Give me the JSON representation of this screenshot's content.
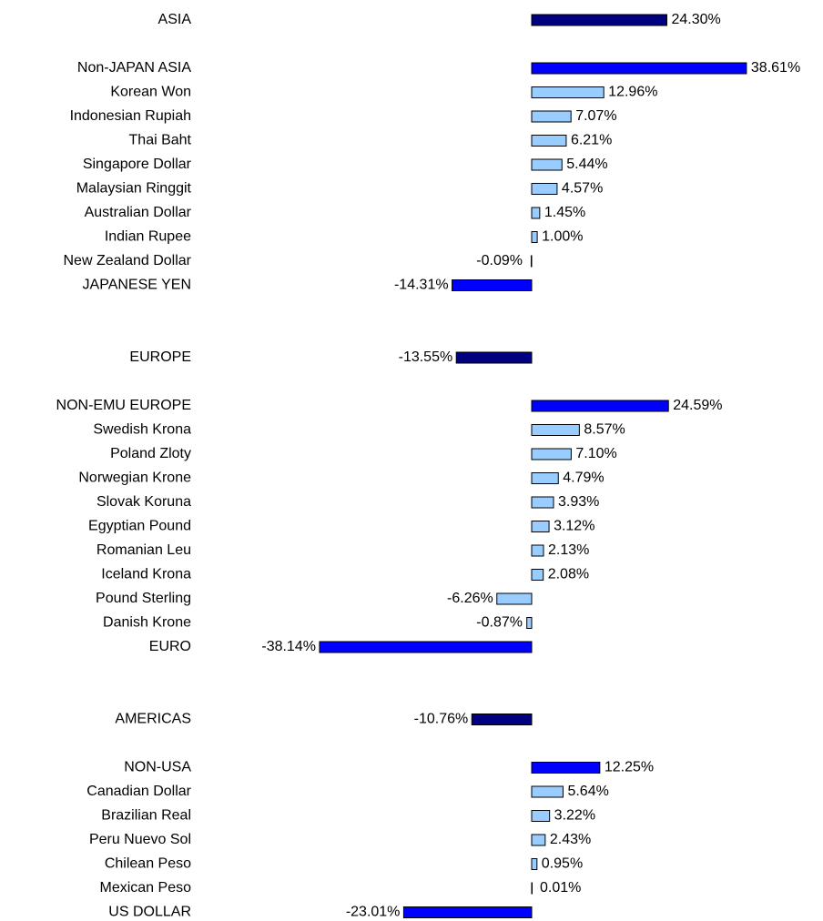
{
  "chart_data": {
    "type": "hbar",
    "categories": [
      "ASIA",
      null,
      "Non-JAPAN ASIA",
      "Korean Won",
      "Indonesian Rupiah",
      "Thai Baht",
      "Singapore Dollar",
      "Malaysian Ringgit",
      "Australian Dollar",
      "Indian Rupee",
      "New Zealand Dollar",
      "JAPANESE YEN",
      null,
      null,
      "EUROPE",
      null,
      "NON-EMU EUROPE",
      "Swedish Krona",
      "Poland Zloty",
      "Norwegian Krone",
      "Slovak Koruna",
      "Egyptian Pound",
      "Romanian Leu",
      "Iceland Krona",
      "Pound Sterling",
      "Danish Krone",
      "EURO",
      null,
      null,
      "AMERICAS",
      null,
      "NON-USA",
      "Canadian Dollar",
      "Brazilian Real",
      "Peru Nuevo Sol",
      "Chilean Peso",
      "Mexican Peso",
      "US DOLLAR"
    ],
    "values": [
      24.3,
      null,
      38.61,
      12.96,
      7.07,
      6.21,
      5.44,
      4.57,
      1.45,
      1.0,
      -0.09,
      -14.31,
      null,
      null,
      -13.55,
      null,
      24.59,
      8.57,
      7.1,
      4.79,
      3.93,
      3.12,
      2.13,
      2.08,
      -6.26,
      -0.87,
      -38.14,
      null,
      null,
      -10.76,
      null,
      12.25,
      5.64,
      3.22,
      2.43,
      0.95,
      0.01,
      -23.01
    ],
    "value_labels": [
      "24.30%",
      null,
      "38.61%",
      "12.96%",
      "7.07%",
      "6.21%",
      "5.44%",
      "4.57%",
      "1.45%",
      "1.00%",
      "-0.09%",
      "-14.31%",
      null,
      null,
      "-13.55%",
      null,
      "24.59%",
      "8.57%",
      "7.10%",
      "4.79%",
      "3.93%",
      "3.12%",
      "2.13%",
      "2.08%",
      "-6.26%",
      "-0.87%",
      "-38.14%",
      null,
      null,
      "-10.76%",
      null,
      "12.25%",
      "5.64%",
      "3.22%",
      "2.43%",
      "0.95%",
      "0.01%",
      "-23.01%"
    ],
    "colors": [
      "#000080",
      null,
      "#0000ff",
      "#99ccff",
      "#99ccff",
      "#99ccff",
      "#99ccff",
      "#99ccff",
      "#99ccff",
      "#99ccff",
      "#99ccff",
      "#0000ff",
      null,
      null,
      "#000080",
      null,
      "#0000ff",
      "#99ccff",
      "#99ccff",
      "#99ccff",
      "#99ccff",
      "#99ccff",
      "#99ccff",
      "#99ccff",
      "#99ccff",
      "#99ccff",
      "#0000ff",
      null,
      null,
      "#000080",
      null,
      "#0000ff",
      "#99ccff",
      "#99ccff",
      "#99ccff",
      "#99ccff",
      "#99ccff",
      "#0000ff"
    ]
  }
}
